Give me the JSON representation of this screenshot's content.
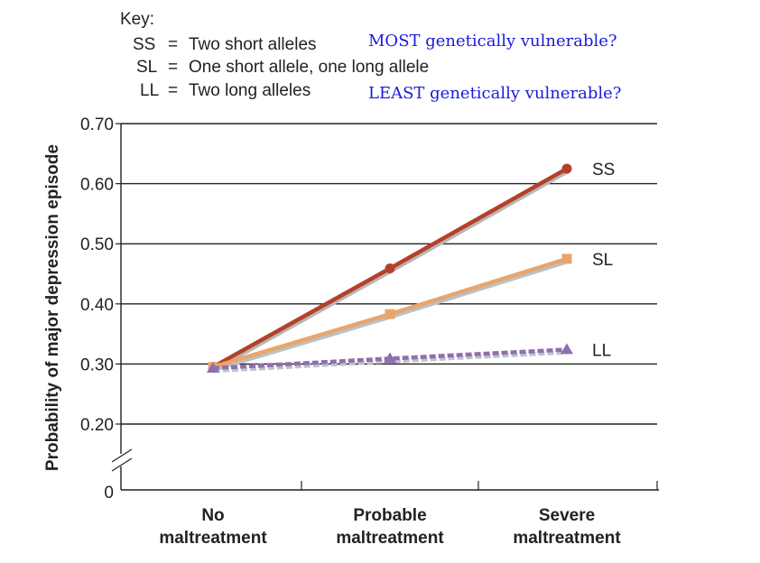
{
  "key": {
    "title": "Key:",
    "entries": [
      {
        "code": "SS",
        "sep": "=",
        "desc": "Two short alleles"
      },
      {
        "code": "SL",
        "sep": "=",
        "desc": "One short allele, one long allele"
      },
      {
        "code": "LL",
        "sep": "=",
        "desc": "Two long alleles"
      }
    ]
  },
  "annotations": {
    "most": "MOST genetically vulnerable?",
    "least": "LEAST genetically vulnerable?",
    "color": "#1a1adb"
  },
  "chart_data": {
    "type": "line",
    "title": "",
    "xlabel": "",
    "ylabel": "Probability of major depression episode",
    "categories": [
      {
        "line1": "No",
        "line2": "maltreatment"
      },
      {
        "line1": "Probable",
        "line2": "maltreatment"
      },
      {
        "line1": "Severe",
        "line2": "maltreatment"
      }
    ],
    "yticks": [
      "0.70",
      "0.60",
      "0.50",
      "0.40",
      "0.30",
      "0.20"
    ],
    "yzero_label": "0",
    "ylim": [
      0.2,
      0.7
    ],
    "axis_break": true,
    "grid": true,
    "series": [
      {
        "name": "SS",
        "values": [
          0.295,
          0.459,
          0.625
        ],
        "color": "#b5402a",
        "shadow": "#b7b7b7",
        "marker": "circle",
        "dashed": false
      },
      {
        "name": "SL",
        "values": [
          0.295,
          0.383,
          0.475
        ],
        "color": "#eaa56a",
        "shadow": "#b9c1c8",
        "marker": "square",
        "dashed": false
      },
      {
        "name": "LL",
        "values": [
          0.293,
          0.309,
          0.324
        ],
        "color": "#8f6faf",
        "shadow": "#bcc3cb",
        "marker": "triangle",
        "dashed": true
      }
    ]
  }
}
